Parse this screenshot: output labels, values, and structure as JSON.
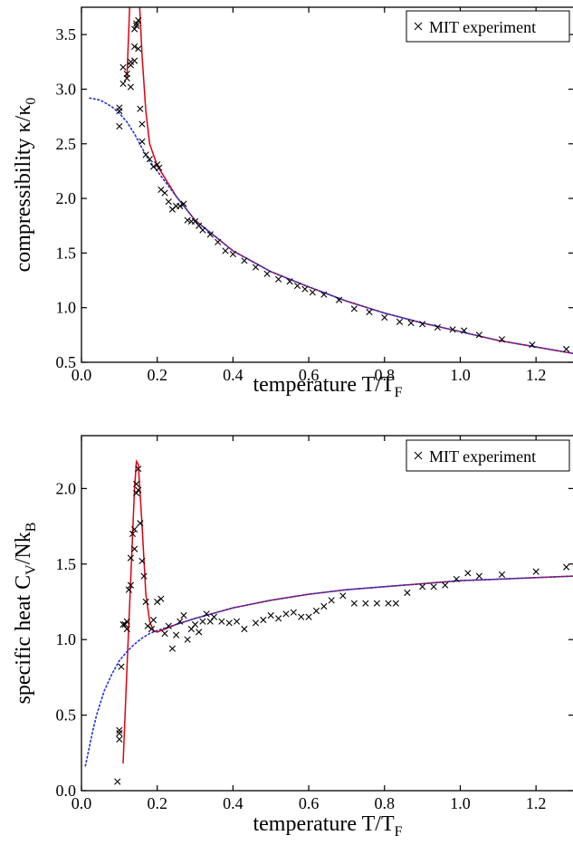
{
  "colors": {
    "red_theory": "#e0000f",
    "blue_theory": "#1f35d6",
    "markers": "#000000"
  },
  "chart_data": [
    {
      "type": "scatter",
      "xlabel": "temperature T/T",
      "xlabel_sub": "F",
      "ylabel": "compressibility κ/κ",
      "ylabel_sub": "0",
      "xlim": [
        0.0,
        1.3
      ],
      "ylim": [
        0.5,
        3.75
      ],
      "xticks": [
        "0.0",
        "0.2",
        "0.4",
        "0.6",
        "0.8",
        "1.0",
        "1.2"
      ],
      "yticks": [
        "0.5",
        "1.0",
        "1.5",
        "2.0",
        "2.5",
        "3.0",
        "3.5"
      ],
      "legend_position": "top-right",
      "series": [
        {
          "name": "MIT experiment",
          "kind": "markers",
          "points": [
            [
              0.1,
              2.66
            ],
            [
              0.1,
              2.8
            ],
            [
              0.1,
              2.83
            ],
            [
              0.11,
              3.05
            ],
            [
              0.11,
              3.2
            ],
            [
              0.12,
              3.1
            ],
            [
              0.12,
              3.14
            ],
            [
              0.13,
              3.25
            ],
            [
              0.13,
              3.02
            ],
            [
              0.13,
              3.22
            ],
            [
              0.14,
              3.26
            ],
            [
              0.14,
              3.39
            ],
            [
              0.14,
              3.55
            ],
            [
              0.145,
              3.6
            ],
            [
              0.145,
              3.58
            ],
            [
              0.15,
              3.63
            ],
            [
              0.15,
              3.37
            ],
            [
              0.155,
              2.82
            ],
            [
              0.16,
              2.68
            ],
            [
              0.16,
              2.52
            ],
            [
              0.17,
              2.4
            ],
            [
              0.18,
              2.36
            ],
            [
              0.19,
              2.29
            ],
            [
              0.2,
              2.31
            ],
            [
              0.205,
              2.28
            ],
            [
              0.21,
              2.08
            ],
            [
              0.22,
              2.05
            ],
            [
              0.23,
              1.97
            ],
            [
              0.24,
              1.9
            ],
            [
              0.25,
              1.93
            ],
            [
              0.26,
              1.93
            ],
            [
              0.27,
              1.95
            ],
            [
              0.28,
              1.8
            ],
            [
              0.29,
              1.79
            ],
            [
              0.3,
              1.79
            ],
            [
              0.31,
              1.75
            ],
            [
              0.32,
              1.71
            ],
            [
              0.34,
              1.67
            ],
            [
              0.36,
              1.6
            ],
            [
              0.38,
              1.52
            ],
            [
              0.4,
              1.49
            ],
            [
              0.43,
              1.43
            ],
            [
              0.46,
              1.37
            ],
            [
              0.49,
              1.31
            ],
            [
              0.52,
              1.26
            ],
            [
              0.55,
              1.24
            ],
            [
              0.57,
              1.2
            ],
            [
              0.59,
              1.17
            ],
            [
              0.61,
              1.14
            ],
            [
              0.64,
              1.12
            ],
            [
              0.68,
              1.07
            ],
            [
              0.72,
              0.99
            ],
            [
              0.76,
              0.96
            ],
            [
              0.8,
              0.91
            ],
            [
              0.84,
              0.87
            ],
            [
              0.87,
              0.86
            ],
            [
              0.9,
              0.85
            ],
            [
              0.94,
              0.82
            ],
            [
              0.98,
              0.8
            ],
            [
              1.01,
              0.79
            ],
            [
              1.05,
              0.75
            ],
            [
              1.11,
              0.71
            ],
            [
              1.19,
              0.66
            ],
            [
              1.28,
              0.62
            ]
          ]
        },
        {
          "kind": "red-line",
          "points": [
            [
              0.12,
              3.1
            ],
            [
              0.125,
              3.55
            ],
            [
              0.13,
              4.0
            ],
            [
              0.15,
              4.0
            ],
            [
              0.16,
              3.3
            ],
            [
              0.17,
              2.8
            ],
            [
              0.18,
              2.5
            ],
            [
              0.2,
              2.3
            ],
            [
              0.25,
              2.02
            ],
            [
              0.3,
              1.8
            ],
            [
              0.4,
              1.52
            ],
            [
              0.5,
              1.33
            ],
            [
              0.6,
              1.19
            ],
            [
              0.7,
              1.06
            ],
            [
              0.8,
              0.95
            ],
            [
              0.9,
              0.86
            ],
            [
              1.0,
              0.78
            ],
            [
              1.1,
              0.7
            ],
            [
              1.2,
              0.64
            ],
            [
              1.3,
              0.58
            ]
          ]
        },
        {
          "kind": "blue-dashed",
          "points": [
            [
              0.02,
              2.92
            ],
            [
              0.05,
              2.9
            ],
            [
              0.08,
              2.84
            ],
            [
              0.1,
              2.78
            ],
            [
              0.12,
              2.7
            ],
            [
              0.14,
              2.59
            ],
            [
              0.16,
              2.46
            ],
            [
              0.18,
              2.34
            ],
            [
              0.2,
              2.25
            ],
            [
              0.25,
              2.02
            ],
            [
              0.3,
              1.8
            ],
            [
              0.4,
              1.52
            ],
            [
              0.5,
              1.33
            ],
            [
              0.6,
              1.19
            ],
            [
              0.7,
              1.06
            ],
            [
              0.8,
              0.95
            ],
            [
              0.9,
              0.86
            ],
            [
              1.0,
              0.78
            ],
            [
              1.1,
              0.7
            ],
            [
              1.2,
              0.64
            ],
            [
              1.3,
              0.58
            ]
          ]
        }
      ]
    },
    {
      "type": "scatter",
      "xlabel": "temperature T/T",
      "xlabel_sub": "F",
      "ylabel": "specific heat C",
      "ylabel_sub": "V",
      "ylabel_rest": "/Nk",
      "ylabel_sub2": "B",
      "xlim": [
        0.0,
        1.3
      ],
      "ylim": [
        0.0,
        2.35
      ],
      "xticks": [
        "0.0",
        "0.2",
        "0.4",
        "0.6",
        "0.8",
        "1.0",
        "1.2"
      ],
      "yticks": [
        "0.0",
        "0.5",
        "1.0",
        "1.5",
        "2.0"
      ],
      "legend_position": "top-right",
      "series": [
        {
          "name": "MIT experiment",
          "kind": "markers",
          "points": [
            [
              0.095,
              0.06
            ],
            [
              0.1,
              0.4
            ],
            [
              0.1,
              0.38
            ],
            [
              0.1,
              0.34
            ],
            [
              0.105,
              0.82
            ],
            [
              0.11,
              1.1
            ],
            [
              0.115,
              1.1
            ],
            [
              0.12,
              1.07
            ],
            [
              0.12,
              1.12
            ],
            [
              0.125,
              1.33
            ],
            [
              0.13,
              1.36
            ],
            [
              0.13,
              1.54
            ],
            [
              0.135,
              1.7
            ],
            [
              0.14,
              1.6
            ],
            [
              0.14,
              1.73
            ],
            [
              0.145,
              1.97
            ],
            [
              0.145,
              2.03
            ],
            [
              0.15,
              1.99
            ],
            [
              0.15,
              2.13
            ],
            [
              0.155,
              1.77
            ],
            [
              0.16,
              1.52
            ],
            [
              0.165,
              1.42
            ],
            [
              0.17,
              1.25
            ],
            [
              0.175,
              1.09
            ],
            [
              0.185,
              1.07
            ],
            [
              0.19,
              1.13
            ],
            [
              0.2,
              1.25
            ],
            [
              0.21,
              1.27
            ],
            [
              0.22,
              1.04
            ],
            [
              0.23,
              1.09
            ],
            [
              0.24,
              0.94
            ],
            [
              0.25,
              1.03
            ],
            [
              0.26,
              1.12
            ],
            [
              0.27,
              1.16
            ],
            [
              0.28,
              1.0
            ],
            [
              0.29,
              1.07
            ],
            [
              0.3,
              1.1
            ],
            [
              0.31,
              1.05
            ],
            [
              0.32,
              1.12
            ],
            [
              0.33,
              1.17
            ],
            [
              0.34,
              1.12
            ],
            [
              0.35,
              1.15
            ],
            [
              0.37,
              1.12
            ],
            [
              0.39,
              1.11
            ],
            [
              0.41,
              1.12
            ],
            [
              0.43,
              1.07
            ],
            [
              0.46,
              1.11
            ],
            [
              0.48,
              1.13
            ],
            [
              0.5,
              1.16
            ],
            [
              0.52,
              1.14
            ],
            [
              0.54,
              1.17
            ],
            [
              0.56,
              1.18
            ],
            [
              0.58,
              1.15
            ],
            [
              0.6,
              1.15
            ],
            [
              0.62,
              1.19
            ],
            [
              0.64,
              1.22
            ],
            [
              0.66,
              1.26
            ],
            [
              0.69,
              1.29
            ],
            [
              0.72,
              1.24
            ],
            [
              0.75,
              1.24
            ],
            [
              0.78,
              1.24
            ],
            [
              0.81,
              1.24
            ],
            [
              0.83,
              1.24
            ],
            [
              0.86,
              1.31
            ],
            [
              0.9,
              1.35
            ],
            [
              0.93,
              1.35
            ],
            [
              0.96,
              1.36
            ],
            [
              0.99,
              1.4
            ],
            [
              1.02,
              1.44
            ],
            [
              1.05,
              1.42
            ],
            [
              1.11,
              1.43
            ],
            [
              1.2,
              1.45
            ],
            [
              1.28,
              1.48
            ]
          ]
        },
        {
          "kind": "red-line",
          "points": [
            [
              0.11,
              0.18
            ],
            [
              0.12,
              0.8
            ],
            [
              0.13,
              1.4
            ],
            [
              0.14,
              2.0
            ],
            [
              0.145,
              2.18
            ],
            [
              0.15,
              2.16
            ],
            [
              0.16,
              1.75
            ],
            [
              0.17,
              1.3
            ],
            [
              0.18,
              1.12
            ],
            [
              0.19,
              1.06
            ],
            [
              0.2,
              1.05
            ],
            [
              0.22,
              1.07
            ],
            [
              0.25,
              1.1
            ],
            [
              0.3,
              1.14
            ],
            [
              0.4,
              1.21
            ],
            [
              0.5,
              1.26
            ],
            [
              0.6,
              1.3
            ],
            [
              0.7,
              1.33
            ],
            [
              0.8,
              1.35
            ],
            [
              0.9,
              1.37
            ],
            [
              1.0,
              1.39
            ],
            [
              1.1,
              1.4
            ],
            [
              1.2,
              1.41
            ],
            [
              1.3,
              1.42
            ]
          ]
        },
        {
          "kind": "blue-dashed",
          "points": [
            [
              0.01,
              0.16
            ],
            [
              0.02,
              0.28
            ],
            [
              0.03,
              0.4
            ],
            [
              0.04,
              0.5
            ],
            [
              0.06,
              0.66
            ],
            [
              0.08,
              0.77
            ],
            [
              0.1,
              0.86
            ],
            [
              0.12,
              0.92
            ],
            [
              0.14,
              0.97
            ],
            [
              0.16,
              1.01
            ],
            [
              0.18,
              1.04
            ],
            [
              0.2,
              1.06
            ],
            [
              0.25,
              1.1
            ],
            [
              0.3,
              1.14
            ],
            [
              0.4,
              1.21
            ],
            [
              0.5,
              1.26
            ],
            [
              0.6,
              1.3
            ],
            [
              0.7,
              1.33
            ],
            [
              0.8,
              1.35
            ],
            [
              0.9,
              1.37
            ],
            [
              1.0,
              1.39
            ],
            [
              1.1,
              1.4
            ],
            [
              1.2,
              1.41
            ],
            [
              1.3,
              1.42
            ]
          ]
        }
      ]
    }
  ]
}
